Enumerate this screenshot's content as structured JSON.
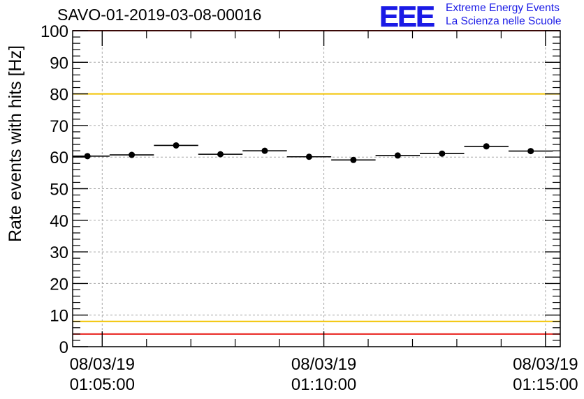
{
  "header": {
    "title": "SAVO-01-2019-03-08-00016",
    "logo_letters": "EEE",
    "logo_line1": "Extreme Energy Events",
    "logo_line2": "La Scienza nelle Scuole",
    "logo_color": "#1a1ae6"
  },
  "chart_data": {
    "type": "scatter",
    "title": "SAVO-01-2019-03-08-00016",
    "ylabel": "Rate events with hits [Hz]",
    "xlabel": "",
    "ylim": [
      0,
      100
    ],
    "xlim": [
      "2019-03-08 01:04:20",
      "2019-03-08 01:15:20"
    ],
    "yticks": [
      0,
      10,
      20,
      30,
      40,
      50,
      60,
      70,
      80,
      90,
      100
    ],
    "xticks": [
      {
        "date": "08/03/19",
        "time": "01:05:00"
      },
      {
        "date": "08/03/19",
        "time": "01:10:00"
      },
      {
        "date": "08/03/19",
        "time": "01:15:00"
      }
    ],
    "grid": true,
    "bin_width_seconds": 60,
    "points": [
      {
        "x": "01:04:40",
        "y": 60.3
      },
      {
        "x": "01:05:40",
        "y": 60.7
      },
      {
        "x": "01:06:40",
        "y": 63.7
      },
      {
        "x": "01:07:40",
        "y": 60.9
      },
      {
        "x": "01:08:40",
        "y": 62.0
      },
      {
        "x": "01:09:40",
        "y": 60.1
      },
      {
        "x": "01:10:40",
        "y": 59.1
      },
      {
        "x": "01:11:40",
        "y": 60.5
      },
      {
        "x": "01:12:40",
        "y": 61.1
      },
      {
        "x": "01:13:40",
        "y": 63.4
      },
      {
        "x": "01:14:40",
        "y": 61.9
      }
    ],
    "reference_lines": [
      {
        "y": 100,
        "color": "#e8201c"
      },
      {
        "y": 80,
        "color": "#f2c300"
      },
      {
        "y": 8,
        "color": "#f2c300"
      },
      {
        "y": 4,
        "color": "#e8201c"
      }
    ]
  }
}
